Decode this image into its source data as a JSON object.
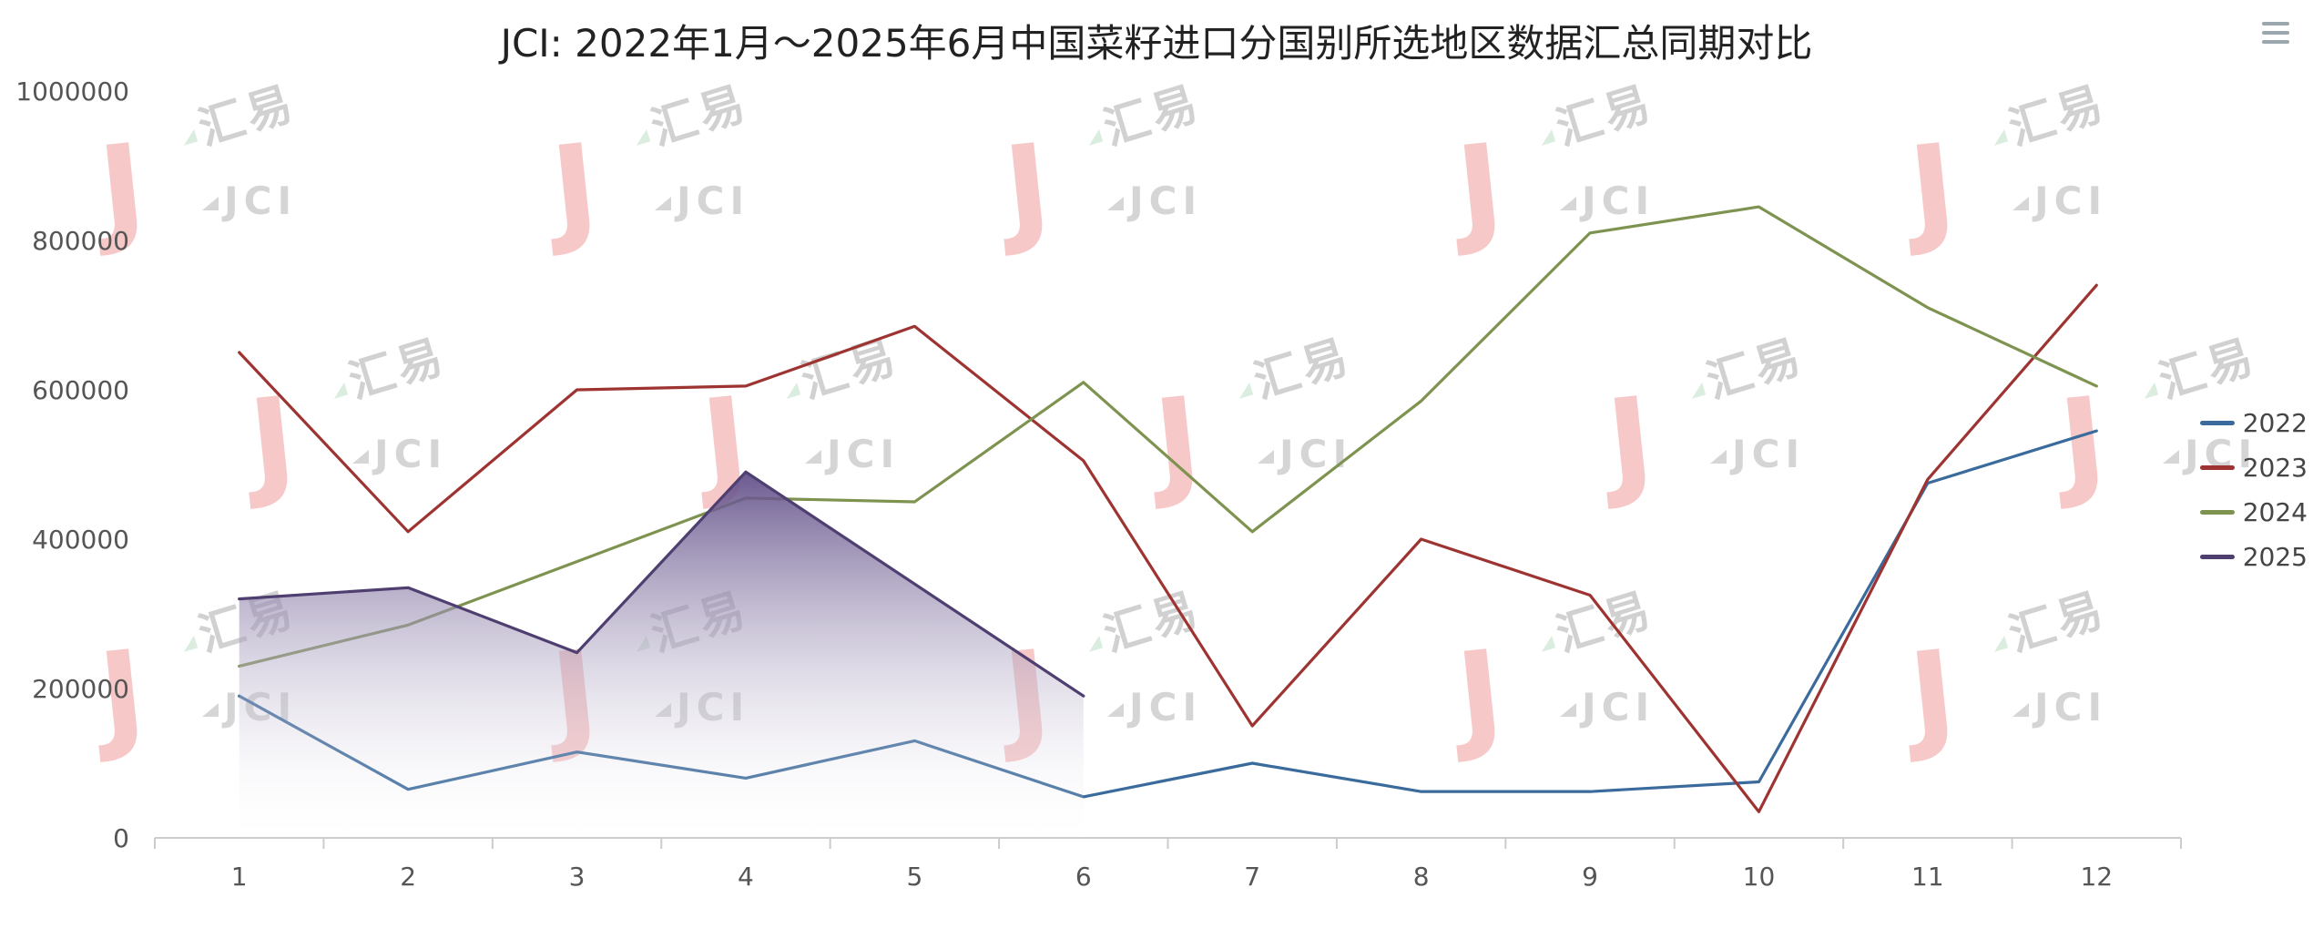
{
  "page": {
    "menu_icon": "hamburger"
  },
  "watermark": {
    "logo_letter": "J",
    "text_cn": "汇易",
    "text_en": "JCI"
  },
  "chart_data": {
    "type": "line",
    "title": "JCI: 2022年1月～2025年6月中国菜籽进口分国别所选地区数据汇总同期对比",
    "categories": [
      1,
      2,
      3,
      4,
      5,
      6,
      7,
      8,
      9,
      10,
      11,
      12
    ],
    "xlabel": "",
    "ylabel": "",
    "ylim": [
      0,
      1000000
    ],
    "yticks": [
      0,
      200000,
      400000,
      600000,
      800000,
      1000000
    ],
    "grid": false,
    "legend_position": "right",
    "series": [
      {
        "name": "2022",
        "color": "#3a6b9c",
        "area": false,
        "values": [
          190000,
          65000,
          115000,
          80000,
          130000,
          55000,
          100000,
          62000,
          62000,
          75000,
          475000,
          545000
        ]
      },
      {
        "name": "2023",
        "color": "#9d3432",
        "area": false,
        "values": [
          650000,
          410000,
          600000,
          605000,
          685000,
          505000,
          150000,
          400000,
          325000,
          35000,
          480000,
          740000
        ]
      },
      {
        "name": "2024",
        "color": "#7f9351",
        "area": false,
        "values": [
          230000,
          285000,
          370000,
          455000,
          450000,
          610000,
          410000,
          585000,
          810000,
          845000,
          710000,
          605000
        ]
      },
      {
        "name": "2025",
        "color": "#4e3f70",
        "area": true,
        "area_gradient_top": "#5e4b86",
        "area_gradient_bottom": "#ffffff",
        "values": [
          320000,
          335000,
          248000,
          490000,
          340000,
          190000
        ]
      }
    ]
  }
}
